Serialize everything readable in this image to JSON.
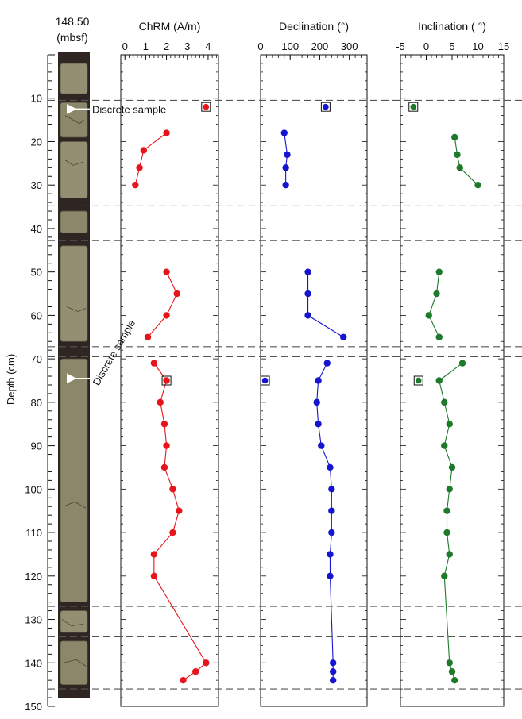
{
  "header": {
    "depth_title": "148.50",
    "depth_title_unit": "(mbsf)"
  },
  "depth_axis": {
    "label": "Depth (cm)",
    "range": [
      0,
      150
    ],
    "ticks": [
      "10",
      "20",
      "30",
      "40",
      "50",
      "60",
      "70",
      "80",
      "90",
      "100",
      "110",
      "120",
      "130",
      "140",
      "150"
    ]
  },
  "core_annotations": [
    {
      "text": "Discrete sample",
      "depth": 12.5
    },
    {
      "text": "Discrete sample",
      "depth": 74.5
    }
  ],
  "section_breaks": [
    10.5,
    34.8,
    42.8,
    67.2,
    69.5,
    127,
    134,
    146
  ],
  "colors": {
    "chrm": "#e8141b",
    "declination": "#1515d0",
    "inclination": "#1e7a2a",
    "core_dark": "#3b2f2c",
    "core_light": "#8c8a6c",
    "break_line": "#555555"
  },
  "chart_data": [
    {
      "type": "scatter",
      "title": "ChRM (A/m)",
      "xlabel": "ChRM (A/m)",
      "xlim": [
        -0.2,
        4.5
      ],
      "x_ticks": [
        "0",
        "1",
        "2",
        "3",
        "4"
      ],
      "ylabel": "Depth (cm)",
      "ylim": [
        0,
        150
      ],
      "discrete": [
        {
          "x": 3.9,
          "depth": 12
        },
        {
          "x": 2.0,
          "depth": 75
        }
      ],
      "segments": [
        [
          {
            "x": 2.0,
            "depth": 18
          },
          {
            "x": 0.9,
            "depth": 22
          },
          {
            "x": 0.7,
            "depth": 26
          },
          {
            "x": 0.5,
            "depth": 30
          }
        ],
        [
          {
            "x": 2.0,
            "depth": 50
          },
          {
            "x": 2.5,
            "depth": 55
          },
          {
            "x": 2.0,
            "depth": 60
          },
          {
            "x": 1.1,
            "depth": 65
          }
        ],
        [
          {
            "x": 1.4,
            "depth": 71
          },
          {
            "x": 2.0,
            "depth": 75
          },
          {
            "x": 1.7,
            "depth": 80
          },
          {
            "x": 1.9,
            "depth": 85
          },
          {
            "x": 2.0,
            "depth": 90
          },
          {
            "x": 1.9,
            "depth": 95
          },
          {
            "x": 2.3,
            "depth": 100
          },
          {
            "x": 2.6,
            "depth": 105
          },
          {
            "x": 2.3,
            "depth": 110
          },
          {
            "x": 1.4,
            "depth": 115
          },
          {
            "x": 1.4,
            "depth": 120
          },
          {
            "x": 3.9,
            "depth": 140
          },
          {
            "x": 3.4,
            "depth": 142
          },
          {
            "x": 2.8,
            "depth": 144
          }
        ]
      ]
    },
    {
      "type": "scatter",
      "title": "Declination (°)",
      "xlabel": "Declination (°)",
      "xlim": [
        0,
        360
      ],
      "x_ticks": [
        "0",
        "100",
        "200",
        "300"
      ],
      "ylabel": "Depth (cm)",
      "ylim": [
        0,
        150
      ],
      "discrete": [
        {
          "x": 220,
          "depth": 12
        },
        {
          "x": 15,
          "depth": 75
        }
      ],
      "segments": [
        [
          {
            "x": 80,
            "depth": 18
          },
          {
            "x": 90,
            "depth": 23
          },
          {
            "x": 85,
            "depth": 26
          },
          {
            "x": 85,
            "depth": 30
          }
        ],
        [
          {
            "x": 160,
            "depth": 50
          },
          {
            "x": 160,
            "depth": 55
          },
          {
            "x": 160,
            "depth": 60
          },
          {
            "x": 280,
            "depth": 65
          }
        ],
        [
          {
            "x": 225,
            "depth": 71
          },
          {
            "x": 195,
            "depth": 75
          },
          {
            "x": 190,
            "depth": 80
          },
          {
            "x": 195,
            "depth": 85
          },
          {
            "x": 205,
            "depth": 90
          },
          {
            "x": 235,
            "depth": 95
          },
          {
            "x": 240,
            "depth": 100
          },
          {
            "x": 240,
            "depth": 105
          },
          {
            "x": 240,
            "depth": 110
          },
          {
            "x": 235,
            "depth": 115
          },
          {
            "x": 235,
            "depth": 120
          },
          {
            "x": 245,
            "depth": 140
          },
          {
            "x": 245,
            "depth": 142
          },
          {
            "x": 245,
            "depth": 144
          }
        ]
      ]
    },
    {
      "type": "scatter",
      "title": "Inclination ( °)",
      "xlabel": "Inclination ( °)",
      "xlim": [
        -5,
        15
      ],
      "x_ticks": [
        "-5",
        "0",
        "5",
        "10",
        "15"
      ],
      "ylabel": "Depth (cm)",
      "ylim": [
        0,
        150
      ],
      "discrete": [
        {
          "x": -2.5,
          "depth": 12
        },
        {
          "x": -1.5,
          "depth": 75
        }
      ],
      "segments": [
        [
          {
            "x": 5.5,
            "depth": 19
          },
          {
            "x": 6.0,
            "depth": 23
          },
          {
            "x": 6.5,
            "depth": 26
          },
          {
            "x": 10.0,
            "depth": 30
          }
        ],
        [
          {
            "x": 2.5,
            "depth": 50
          },
          {
            "x": 2.0,
            "depth": 55
          },
          {
            "x": 0.5,
            "depth": 60
          },
          {
            "x": 2.5,
            "depth": 65
          }
        ],
        [
          {
            "x": 7.0,
            "depth": 71
          },
          {
            "x": 2.5,
            "depth": 75
          },
          {
            "x": 3.5,
            "depth": 80
          },
          {
            "x": 4.5,
            "depth": 85
          },
          {
            "x": 3.5,
            "depth": 90
          },
          {
            "x": 5.0,
            "depth": 95
          },
          {
            "x": 4.5,
            "depth": 100
          },
          {
            "x": 4.0,
            "depth": 105
          },
          {
            "x": 4.0,
            "depth": 110
          },
          {
            "x": 4.5,
            "depth": 115
          },
          {
            "x": 3.5,
            "depth": 120
          },
          {
            "x": 4.5,
            "depth": 140
          },
          {
            "x": 5.0,
            "depth": 142
          },
          {
            "x": 5.5,
            "depth": 144
          }
        ]
      ]
    }
  ]
}
